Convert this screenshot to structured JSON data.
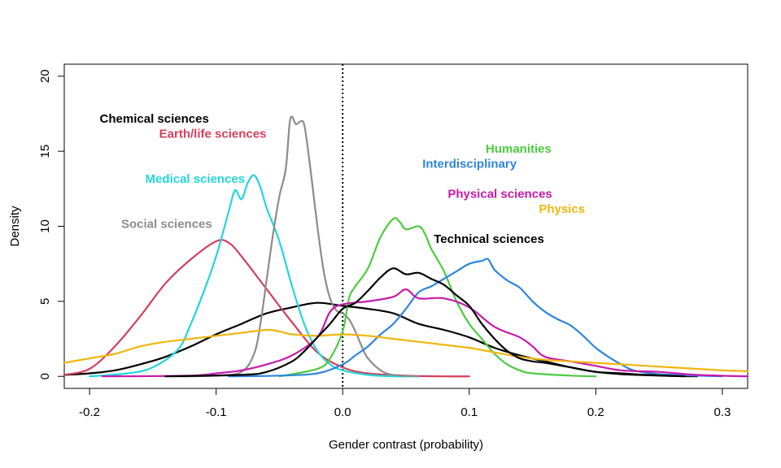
{
  "chart_data": {
    "type": "line",
    "xlabel": "Gender contrast (probability)",
    "ylabel": "Density",
    "xlim": [
      -0.22,
      0.32
    ],
    "ylim": [
      -0.8,
      20.8
    ],
    "x_ticks": [
      "-0.2",
      "-0.1",
      "0.0",
      "0.1",
      "0.2",
      "0.3"
    ],
    "y_ticks": [
      "0",
      "5",
      "10",
      "15",
      "20"
    ],
    "reference_line": {
      "x": 0,
      "style": "dotted"
    },
    "grid": false,
    "series": [
      {
        "name": "Chemical sciences",
        "color": "#000000",
        "label_at": [
          -0.192,
          16.9
        ],
        "points": [
          [
            -0.22,
            0.1
          ],
          [
            -0.2,
            0.2
          ],
          [
            -0.18,
            0.4
          ],
          [
            -0.16,
            0.8
          ],
          [
            -0.14,
            1.3
          ],
          [
            -0.12,
            2.0
          ],
          [
            -0.1,
            2.8
          ],
          [
            -0.08,
            3.5
          ],
          [
            -0.06,
            4.2
          ],
          [
            -0.04,
            4.6
          ],
          [
            -0.02,
            4.9
          ],
          [
            0.0,
            4.7
          ],
          [
            0.02,
            4.5
          ],
          [
            0.04,
            4.2
          ],
          [
            0.06,
            3.5
          ],
          [
            0.08,
            3.1
          ],
          [
            0.1,
            2.6
          ],
          [
            0.12,
            1.9
          ],
          [
            0.14,
            1.4
          ],
          [
            0.16,
            1.0
          ],
          [
            0.18,
            0.6
          ],
          [
            0.2,
            0.3
          ],
          [
            0.22,
            0.15
          ],
          [
            0.25,
            0.05
          ],
          [
            0.28,
            0.0
          ]
        ]
      },
      {
        "name": "Earth/life sciences",
        "color": "#d33f5b",
        "label_at": [
          -0.145,
          15.9
        ],
        "points": [
          [
            -0.22,
            0.1
          ],
          [
            -0.2,
            0.5
          ],
          [
            -0.18,
            2.0
          ],
          [
            -0.16,
            4.0
          ],
          [
            -0.14,
            6.2
          ],
          [
            -0.12,
            7.8
          ],
          [
            -0.1,
            9.0
          ],
          [
            -0.09,
            8.9
          ],
          [
            -0.08,
            8.0
          ],
          [
            -0.06,
            5.8
          ],
          [
            -0.04,
            3.6
          ],
          [
            -0.02,
            1.6
          ],
          [
            0.0,
            0.6
          ],
          [
            0.02,
            0.2
          ],
          [
            0.05,
            0.05
          ],
          [
            0.08,
            0.0
          ],
          [
            0.1,
            0.0
          ]
        ]
      },
      {
        "name": "Medical sciences",
        "color": "#22d6dd",
        "label_at": [
          -0.156,
          12.9
        ],
        "points": [
          [
            -0.2,
            0.0
          ],
          [
            -0.17,
            0.2
          ],
          [
            -0.15,
            0.6
          ],
          [
            -0.13,
            1.8
          ],
          [
            -0.12,
            3.5
          ],
          [
            -0.11,
            5.6
          ],
          [
            -0.1,
            8.0
          ],
          [
            -0.09,
            11.0
          ],
          [
            -0.085,
            12.4
          ],
          [
            -0.08,
            11.8
          ],
          [
            -0.075,
            12.9
          ],
          [
            -0.07,
            13.4
          ],
          [
            -0.065,
            12.6
          ],
          [
            -0.06,
            11.2
          ],
          [
            -0.05,
            9.0
          ],
          [
            -0.04,
            6.0
          ],
          [
            -0.03,
            3.4
          ],
          [
            -0.02,
            1.7
          ],
          [
            -0.01,
            0.8
          ],
          [
            0.0,
            0.4
          ],
          [
            0.02,
            0.1
          ],
          [
            0.04,
            0.0
          ],
          [
            0.06,
            0.0
          ]
        ]
      },
      {
        "name": "Social sciences",
        "color": "#8c8c8c",
        "label_at": [
          -0.175,
          9.9
        ],
        "points": [
          [
            -0.13,
            0.0
          ],
          [
            -0.1,
            0.05
          ],
          [
            -0.08,
            0.3
          ],
          [
            -0.07,
            1.5
          ],
          [
            -0.065,
            3.5
          ],
          [
            -0.06,
            6.5
          ],
          [
            -0.055,
            9.5
          ],
          [
            -0.05,
            12.0
          ],
          [
            -0.045,
            13.8
          ],
          [
            -0.042,
            16.8
          ],
          [
            -0.04,
            17.3
          ],
          [
            -0.037,
            16.8
          ],
          [
            -0.033,
            17.0
          ],
          [
            -0.03,
            16.6
          ],
          [
            -0.025,
            13.5
          ],
          [
            -0.02,
            10.0
          ],
          [
            -0.015,
            7.0
          ],
          [
            -0.01,
            5.2
          ],
          [
            -0.005,
            4.4
          ],
          [
            0.0,
            4.2
          ],
          [
            0.005,
            3.8
          ],
          [
            0.01,
            3.0
          ],
          [
            0.015,
            2.0
          ],
          [
            0.02,
            1.2
          ],
          [
            0.03,
            0.4
          ],
          [
            0.04,
            0.1
          ],
          [
            0.06,
            0.0
          ]
        ]
      },
      {
        "name": "Humanities",
        "color": "#4ccb3f",
        "label_at": [
          0.113,
          14.9
        ],
        "points": [
          [
            -0.05,
            0.0
          ],
          [
            -0.02,
            0.5
          ],
          [
            -0.01,
            1.2
          ],
          [
            0.0,
            3.0
          ],
          [
            0.005,
            5.2
          ],
          [
            0.01,
            6.0
          ],
          [
            0.02,
            7.2
          ],
          [
            0.03,
            9.3
          ],
          [
            0.04,
            10.5
          ],
          [
            0.045,
            10.3
          ],
          [
            0.05,
            9.8
          ],
          [
            0.06,
            10.0
          ],
          [
            0.065,
            9.5
          ],
          [
            0.07,
            8.5
          ],
          [
            0.08,
            7.0
          ],
          [
            0.09,
            5.0
          ],
          [
            0.1,
            3.5
          ],
          [
            0.11,
            2.5
          ],
          [
            0.12,
            1.5
          ],
          [
            0.13,
            0.8
          ],
          [
            0.14,
            0.4
          ],
          [
            0.15,
            0.2
          ],
          [
            0.18,
            0.05
          ],
          [
            0.2,
            0.0
          ]
        ]
      },
      {
        "name": "Interdisciplinary",
        "color": "#2e86dc",
        "label_at": [
          0.063,
          13.9
        ],
        "points": [
          [
            -0.09,
            0.0
          ],
          [
            -0.05,
            0.05
          ],
          [
            -0.02,
            0.2
          ],
          [
            0.0,
            0.8
          ],
          [
            0.01,
            1.4
          ],
          [
            0.02,
            2.0
          ],
          [
            0.03,
            2.8
          ],
          [
            0.04,
            3.5
          ],
          [
            0.05,
            4.5
          ],
          [
            0.06,
            5.6
          ],
          [
            0.07,
            6.0
          ],
          [
            0.08,
            6.5
          ],
          [
            0.09,
            7.0
          ],
          [
            0.1,
            7.5
          ],
          [
            0.11,
            7.7
          ],
          [
            0.115,
            7.8
          ],
          [
            0.12,
            7.1
          ],
          [
            0.13,
            6.4
          ],
          [
            0.14,
            5.9
          ],
          [
            0.15,
            5.0
          ],
          [
            0.16,
            4.3
          ],
          [
            0.17,
            3.8
          ],
          [
            0.18,
            3.4
          ],
          [
            0.19,
            2.7
          ],
          [
            0.2,
            1.9
          ],
          [
            0.21,
            1.3
          ],
          [
            0.22,
            0.8
          ],
          [
            0.23,
            0.4
          ],
          [
            0.25,
            0.15
          ],
          [
            0.28,
            0.05
          ],
          [
            0.3,
            0.0
          ]
        ]
      },
      {
        "name": "Physical sciences",
        "color": "#c71aab",
        "label_at": [
          0.083,
          11.9
        ],
        "points": [
          [
            -0.19,
            0.0
          ],
          [
            -0.12,
            0.05
          ],
          [
            -0.1,
            0.2
          ],
          [
            -0.08,
            0.4
          ],
          [
            -0.06,
            0.8
          ],
          [
            -0.04,
            1.4
          ],
          [
            -0.02,
            2.6
          ],
          [
            -0.01,
            4.3
          ],
          [
            0.0,
            4.8
          ],
          [
            0.02,
            5.0
          ],
          [
            0.04,
            5.3
          ],
          [
            0.05,
            5.8
          ],
          [
            0.06,
            5.2
          ],
          [
            0.08,
            5.2
          ],
          [
            0.1,
            4.6
          ],
          [
            0.12,
            3.3
          ],
          [
            0.14,
            2.6
          ],
          [
            0.15,
            2.0
          ],
          [
            0.16,
            1.3
          ],
          [
            0.18,
            1.0
          ],
          [
            0.2,
            0.7
          ],
          [
            0.22,
            0.4
          ],
          [
            0.25,
            0.3
          ],
          [
            0.28,
            0.1
          ],
          [
            0.32,
            0.0
          ]
        ]
      },
      {
        "name": "Physics",
        "color": "#f0b60e",
        "label_at": [
          0.155,
          10.9
        ],
        "points": [
          [
            -0.22,
            0.9
          ],
          [
            -0.2,
            1.2
          ],
          [
            -0.18,
            1.5
          ],
          [
            -0.16,
            2.0
          ],
          [
            -0.14,
            2.3
          ],
          [
            -0.12,
            2.5
          ],
          [
            -0.1,
            2.7
          ],
          [
            -0.08,
            2.9
          ],
          [
            -0.06,
            3.1
          ],
          [
            -0.05,
            3.0
          ],
          [
            -0.04,
            2.8
          ],
          [
            -0.02,
            2.7
          ],
          [
            0.0,
            2.8
          ],
          [
            0.02,
            2.7
          ],
          [
            0.04,
            2.5
          ],
          [
            0.06,
            2.3
          ],
          [
            0.08,
            2.1
          ],
          [
            0.1,
            1.9
          ],
          [
            0.12,
            1.6
          ],
          [
            0.14,
            1.3
          ],
          [
            0.16,
            1.1
          ],
          [
            0.18,
            1.0
          ],
          [
            0.2,
            0.9
          ],
          [
            0.22,
            0.8
          ],
          [
            0.24,
            0.7
          ],
          [
            0.26,
            0.6
          ],
          [
            0.28,
            0.5
          ],
          [
            0.3,
            0.4
          ],
          [
            0.32,
            0.35
          ]
        ]
      },
      {
        "name": "Technical sciences",
        "color": "#000000",
        "label_at": [
          0.072,
          8.9
        ],
        "points": [
          [
            -0.14,
            0.0
          ],
          [
            -0.08,
            0.1
          ],
          [
            -0.06,
            0.3
          ],
          [
            -0.04,
            1.0
          ],
          [
            -0.03,
            1.7
          ],
          [
            -0.02,
            2.6
          ],
          [
            -0.01,
            3.5
          ],
          [
            0.0,
            4.5
          ],
          [
            0.01,
            4.9
          ],
          [
            0.02,
            5.7
          ],
          [
            0.03,
            6.6
          ],
          [
            0.04,
            7.2
          ],
          [
            0.05,
            6.8
          ],
          [
            0.06,
            6.9
          ],
          [
            0.07,
            6.5
          ],
          [
            0.08,
            6.1
          ],
          [
            0.09,
            5.4
          ],
          [
            0.1,
            4.7
          ],
          [
            0.11,
            3.5
          ],
          [
            0.12,
            2.5
          ],
          [
            0.13,
            1.7
          ],
          [
            0.14,
            1.2
          ],
          [
            0.15,
            1.0
          ],
          [
            0.16,
            0.9
          ],
          [
            0.18,
            0.6
          ],
          [
            0.2,
            0.3
          ],
          [
            0.22,
            0.2
          ],
          [
            0.24,
            0.1
          ],
          [
            0.27,
            0.0
          ]
        ]
      }
    ]
  }
}
